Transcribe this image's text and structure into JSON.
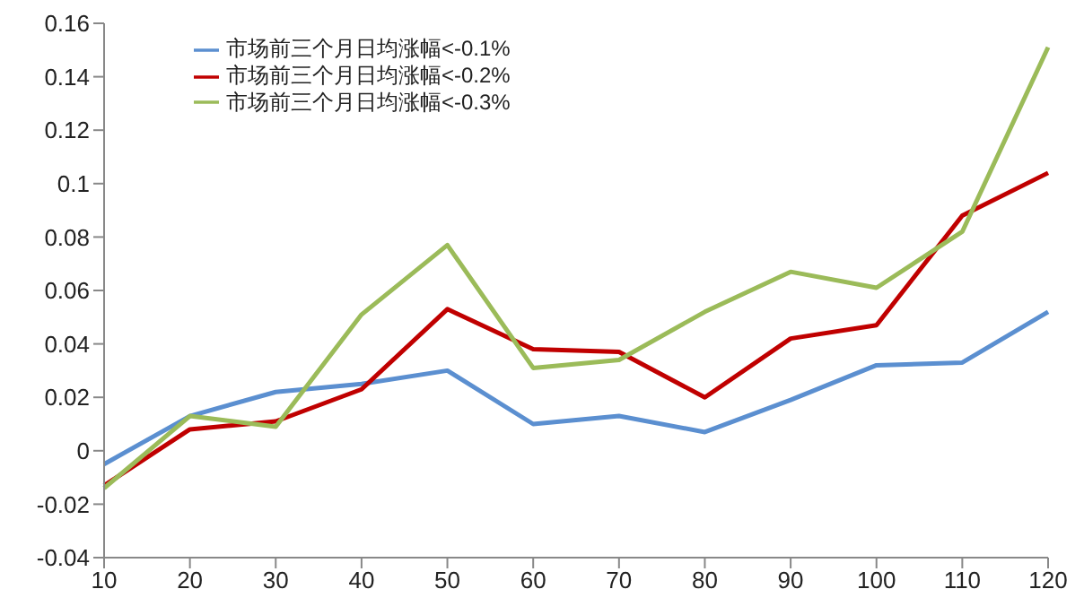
{
  "chart_data": {
    "type": "line",
    "categories": [
      "10",
      "20",
      "30",
      "40",
      "50",
      "60",
      "70",
      "80",
      "90",
      "100",
      "110",
      "120"
    ],
    "series": [
      {
        "name": "市场前三个月日均涨幅<-0.1%",
        "color": "#5b8fd0",
        "values": [
          -0.005,
          0.013,
          0.022,
          0.025,
          0.03,
          0.01,
          0.013,
          0.007,
          0.019,
          0.032,
          0.033,
          0.052
        ]
      },
      {
        "name": "市场前三个月日均涨幅<-0.2%",
        "color": "#c00000",
        "values": [
          -0.013,
          0.008,
          0.011,
          0.023,
          0.053,
          0.038,
          0.037,
          0.02,
          0.042,
          0.047,
          0.088,
          0.104
        ]
      },
      {
        "name": "市场前三个月日均涨幅<-0.3%",
        "color": "#9bbb59",
        "values": [
          -0.014,
          0.013,
          0.009,
          0.051,
          0.077,
          0.031,
          0.034,
          0.052,
          0.067,
          0.061,
          0.082,
          0.151
        ]
      }
    ],
    "ylim": [
      -0.04,
      0.16
    ],
    "yticks": [
      -0.04,
      -0.02,
      0,
      0.02,
      0.04,
      0.06,
      0.08,
      0.1,
      0.12,
      0.14,
      0.16
    ],
    "legend": "top left",
    "marker": "none",
    "line_style": "solid",
    "grid": false
  }
}
